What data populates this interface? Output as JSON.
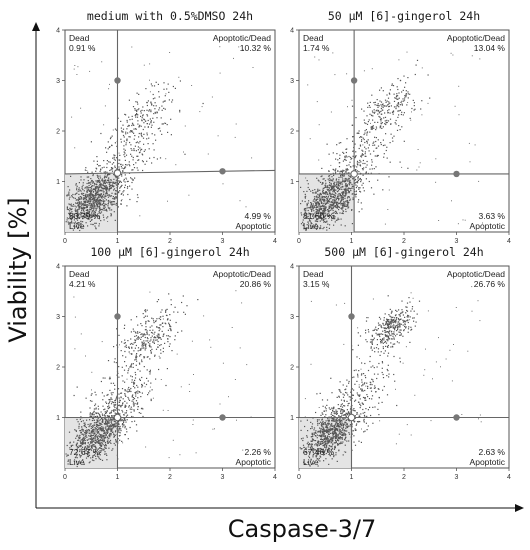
{
  "figure": {
    "xlabel": "Caspase-3/7",
    "ylabel": "Viability [%]"
  },
  "chart_data": [
    {
      "type": "scatter",
      "title": "medium with 0.5%DMSO 24h",
      "xlim": [
        0,
        4
      ],
      "ylim": [
        0,
        4
      ],
      "xticks": [
        "0",
        "1",
        "2",
        "3",
        "4"
      ],
      "yticks": [
        "1",
        "2",
        "3",
        "4"
      ],
      "gate": {
        "x": 1.0,
        "y": 1.15,
        "y_right": 1.22,
        "tilted": true
      },
      "quadrants": {
        "dead": {
          "name": "Dead",
          "pct": "0.91 %"
        },
        "apoptotic_dead": {
          "name": "Apoptotic/Dead",
          "pct": "10.32 %"
        },
        "live": {
          "name": "Live",
          "pct": "83.79 %"
        },
        "apoptotic": {
          "name": "Apoptotic",
          "pct": "4.99 %"
        }
      },
      "clusters": [
        {
          "cx": 0.55,
          "cy": 0.65,
          "sx": 0.28,
          "sy": 0.28,
          "n": 900
        },
        {
          "cx": 1.1,
          "cy": 1.4,
          "sx": 0.35,
          "sy": 0.35,
          "n": 200
        },
        {
          "cx": 1.55,
          "cy": 2.3,
          "sx": 0.3,
          "sy": 0.3,
          "n": 180
        }
      ]
    },
    {
      "type": "scatter",
      "title": "50 µM [6]-gingerol 24h",
      "xlim": [
        0,
        4
      ],
      "ylim": [
        0,
        4
      ],
      "xticks": [
        "0",
        "1",
        "2",
        "3",
        "4"
      ],
      "yticks": [
        "1",
        "2",
        "3",
        "4"
      ],
      "gate": {
        "x": 1.05,
        "y": 1.15,
        "y_right": 1.15,
        "tilted": false
      },
      "quadrants": {
        "dead": {
          "name": "Dead",
          "pct": "1.74 %"
        },
        "apoptotic_dead": {
          "name": "Apoptotic/Dead",
          "pct": "13.04 %"
        },
        "live": {
          "name": "Live",
          "pct": "81.60 %"
        },
        "apoptotic": {
          "name": "Apoptotic",
          "pct": "3.63 %"
        }
      },
      "clusters": [
        {
          "cx": 0.6,
          "cy": 0.65,
          "sx": 0.3,
          "sy": 0.28,
          "n": 900
        },
        {
          "cx": 1.2,
          "cy": 1.5,
          "sx": 0.35,
          "sy": 0.35,
          "n": 200
        },
        {
          "cx": 1.65,
          "cy": 2.4,
          "sx": 0.3,
          "sy": 0.3,
          "n": 220
        }
      ]
    },
    {
      "type": "scatter",
      "title": "100 µM [6]-gingerol 24h",
      "xlim": [
        0,
        4
      ],
      "ylim": [
        0,
        4
      ],
      "xticks": [
        "0",
        "1",
        "2",
        "3",
        "4"
      ],
      "yticks": [
        "1",
        "2",
        "3",
        "4"
      ],
      "gate": {
        "x": 1.0,
        "y": 1.0,
        "y_right": 1.0,
        "tilted": false
      },
      "quadrants": {
        "dead": {
          "name": "Dead",
          "pct": "4.21 %"
        },
        "apoptotic_dead": {
          "name": "Apoptotic/Dead",
          "pct": "20.86 %"
        },
        "live": {
          "name": "Live",
          "pct": "72.67 %"
        },
        "apoptotic": {
          "name": "Apoptotic",
          "pct": "2.26 %"
        }
      },
      "clusters": [
        {
          "cx": 0.65,
          "cy": 0.7,
          "sx": 0.28,
          "sy": 0.28,
          "n": 800
        },
        {
          "cx": 1.15,
          "cy": 1.45,
          "sx": 0.35,
          "sy": 0.4,
          "n": 220
        },
        {
          "cx": 1.6,
          "cy": 2.6,
          "sx": 0.28,
          "sy": 0.3,
          "n": 280
        }
      ]
    },
    {
      "type": "scatter",
      "title": "500 µM [6]-gingerol 24h",
      "xlim": [
        0,
        4
      ],
      "ylim": [
        0,
        4
      ],
      "xticks": [
        "0",
        "1",
        "2",
        "3",
        "4"
      ],
      "yticks": [
        "1",
        "2",
        "3",
        "4"
      ],
      "gate": {
        "x": 1.0,
        "y": 1.0,
        "y_right": 1.0,
        "tilted": false
      },
      "quadrants": {
        "dead": {
          "name": "Dead",
          "pct": "3.15 %"
        },
        "apoptotic_dead": {
          "name": "Apoptotic/Dead",
          "pct": "26.76 %"
        },
        "live": {
          "name": "Live",
          "pct": "67.46 %"
        },
        "apoptotic": {
          "name": "Apoptotic",
          "pct": "2.63 %"
        }
      },
      "clusters": [
        {
          "cx": 0.6,
          "cy": 0.7,
          "sx": 0.28,
          "sy": 0.28,
          "n": 780
        },
        {
          "cx": 1.15,
          "cy": 1.5,
          "sx": 0.35,
          "sy": 0.4,
          "n": 200
        },
        {
          "cx": 1.75,
          "cy": 2.75,
          "sx": 0.22,
          "sy": 0.22,
          "n": 330
        }
      ]
    }
  ]
}
